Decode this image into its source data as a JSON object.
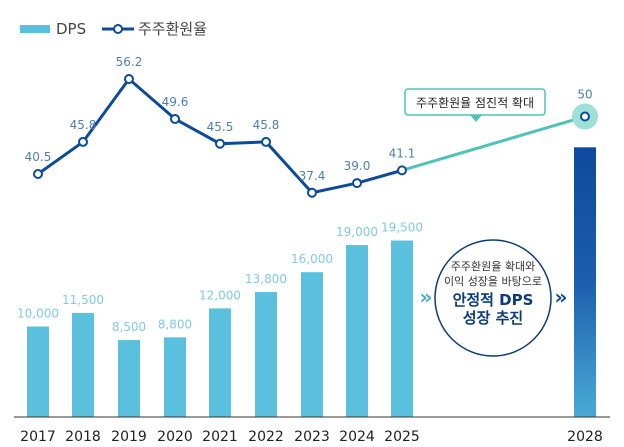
{
  "chart_data": {
    "type": "bar+line",
    "categories": [
      "2017",
      "2018",
      "2019",
      "2020",
      "2021",
      "2022",
      "2023",
      "2024",
      "2025",
      "2028"
    ],
    "series": [
      {
        "name": "DPS",
        "type": "bar",
        "values": [
          10000,
          11500,
          8500,
          8800,
          12000,
          13800,
          16000,
          19000,
          19500,
          29800
        ],
        "labels": [
          "10,000",
          "11,500",
          "8,500",
          "8,800",
          "12,000",
          "13,800",
          "16,000",
          "19,000",
          "19,500",
          ""
        ],
        "color": "#5bc0de",
        "target_color": "#0d4a9b"
      },
      {
        "name": "주주환원율",
        "type": "line",
        "values": [
          40.5,
          45.8,
          56.2,
          49.6,
          45.5,
          45.8,
          37.4,
          39.0,
          41.1,
          50
        ],
        "labels": [
          "40.5",
          "45.8",
          "56.2",
          "49.6",
          "45.5",
          "45.8",
          "37.4",
          "39.0",
          "41.1",
          "50"
        ],
        "color": "#0d4a9b",
        "projection_color": "#4fc3b7"
      }
    ],
    "annotations": {
      "callout": "주주환원율 점진적 확대",
      "circle_line1": "주주환원율 확대와",
      "circle_line2": "이익 성장을 바탕으로",
      "circle_line3": "안정적 DPS",
      "circle_line4": "성장 추진"
    },
    "legend": "top-left",
    "grid": false
  }
}
